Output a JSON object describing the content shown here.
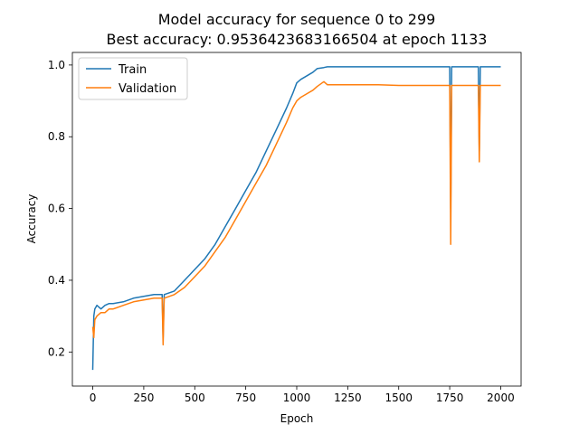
{
  "chart_data": {
    "type": "line",
    "title": "Model accuracy for sequence 0 to 299",
    "subtitle": "Best accuracy: 0.9536423683166504 at epoch 1133",
    "xlabel": "Epoch",
    "ylabel": "Accuracy",
    "xlim": [
      -100,
      2100
    ],
    "ylim": [
      0.105,
      1.035
    ],
    "x_ticks": [
      0,
      250,
      500,
      750,
      1000,
      1250,
      1500,
      1750,
      2000
    ],
    "y_ticks": [
      0.2,
      0.4,
      0.6,
      0.8,
      1.0
    ],
    "y_tick_labels": [
      "0.2",
      "0.4",
      "0.6",
      "0.8",
      "1.0"
    ],
    "grid": false,
    "legend_position": "top-left",
    "series": [
      {
        "name": "Train",
        "color": "#1f77b4",
        "x": [
          0,
          5,
          10,
          20,
          40,
          60,
          80,
          100,
          150,
          200,
          250,
          300,
          340,
          345,
          350,
          400,
          450,
          500,
          550,
          600,
          650,
          700,
          750,
          800,
          850,
          900,
          950,
          980,
          1000,
          1020,
          1050,
          1080,
          1100,
          1133,
          1150,
          1200,
          1250,
          1300,
          1400,
          1500,
          1600,
          1700,
          1750,
          1755,
          1760,
          1800,
          1890,
          1895,
          1900,
          1950,
          2000
        ],
        "y": [
          0.15,
          0.3,
          0.32,
          0.33,
          0.32,
          0.33,
          0.335,
          0.335,
          0.34,
          0.35,
          0.355,
          0.36,
          0.36,
          0.24,
          0.36,
          0.37,
          0.4,
          0.43,
          0.46,
          0.5,
          0.55,
          0.6,
          0.65,
          0.7,
          0.76,
          0.82,
          0.88,
          0.92,
          0.95,
          0.96,
          0.97,
          0.98,
          0.99,
          0.993,
          0.995,
          0.995,
          0.995,
          0.995,
          0.995,
          0.995,
          0.995,
          0.995,
          0.995,
          0.6,
          0.995,
          0.995,
          0.995,
          0.76,
          0.995,
          0.995,
          0.995
        ]
      },
      {
        "name": "Validation",
        "color": "#ff7f0e",
        "x": [
          0,
          5,
          10,
          20,
          40,
          60,
          80,
          100,
          150,
          200,
          250,
          300,
          340,
          345,
          350,
          400,
          450,
          500,
          550,
          600,
          650,
          700,
          750,
          800,
          850,
          900,
          950,
          980,
          1000,
          1020,
          1050,
          1080,
          1100,
          1133,
          1150,
          1200,
          1250,
          1300,
          1400,
          1500,
          1600,
          1700,
          1750,
          1755,
          1760,
          1800,
          1890,
          1895,
          1900,
          1950,
          2000
        ],
        "y": [
          0.27,
          0.24,
          0.29,
          0.3,
          0.31,
          0.31,
          0.32,
          0.32,
          0.33,
          0.34,
          0.345,
          0.35,
          0.35,
          0.22,
          0.35,
          0.36,
          0.38,
          0.41,
          0.44,
          0.48,
          0.52,
          0.57,
          0.62,
          0.67,
          0.72,
          0.78,
          0.84,
          0.88,
          0.9,
          0.91,
          0.92,
          0.93,
          0.94,
          0.9536,
          0.945,
          0.945,
          0.945,
          0.945,
          0.945,
          0.943,
          0.943,
          0.943,
          0.943,
          0.5,
          0.943,
          0.943,
          0.943,
          0.73,
          0.943,
          0.943,
          0.943
        ]
      }
    ]
  }
}
